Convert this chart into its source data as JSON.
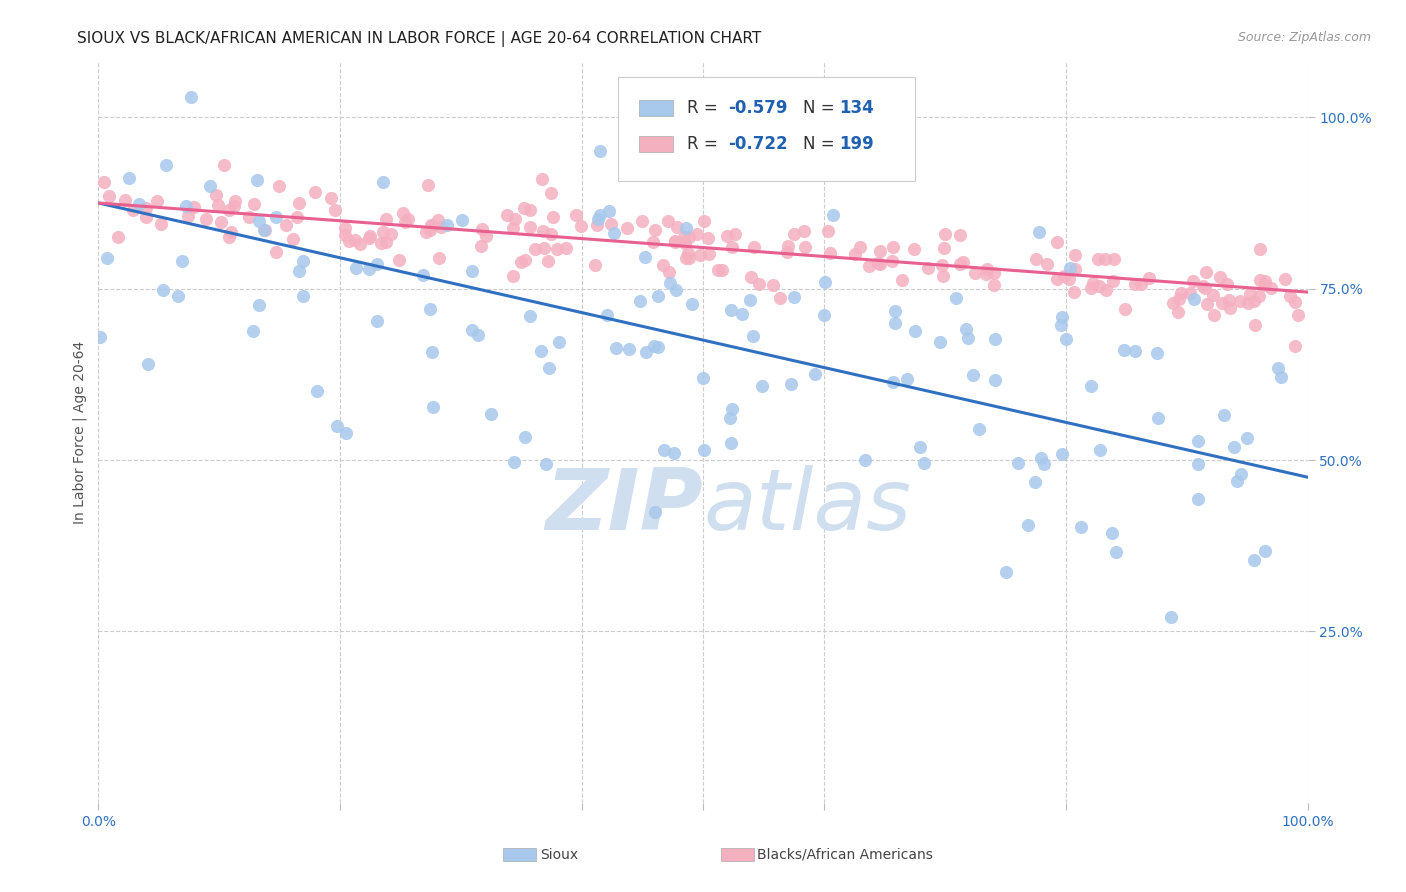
{
  "title": "SIOUX VS BLACK/AFRICAN AMERICAN IN LABOR FORCE | AGE 20-64 CORRELATION CHART",
  "source": "Source: ZipAtlas.com",
  "ylabel": "In Labor Force | Age 20-64",
  "sioux_R": -0.579,
  "sioux_N": 134,
  "black_R": -0.722,
  "black_N": 199,
  "sioux_color": "#A8C8EC",
  "sioux_line_color": "#3070C0",
  "black_color": "#F5B0C0",
  "black_line_color": "#E86090",
  "watermark": "ZIPatlas",
  "watermark_color": "#D0DFF0",
  "background_color": "#FFFFFF",
  "legend_R_color": "#2060B0",
  "title_fontsize": 11,
  "source_fontsize": 9,
  "xlim": [
    0.0,
    1.0
  ],
  "ylim": [
    0.0,
    1.08
  ],
  "sioux_line_x0": 0.0,
  "sioux_line_y0": 0.875,
  "sioux_line_x1": 1.0,
  "sioux_line_y1": 0.475,
  "black_line_x0": 0.0,
  "black_line_y0": 0.875,
  "black_line_x1": 1.0,
  "black_line_y1": 0.745
}
